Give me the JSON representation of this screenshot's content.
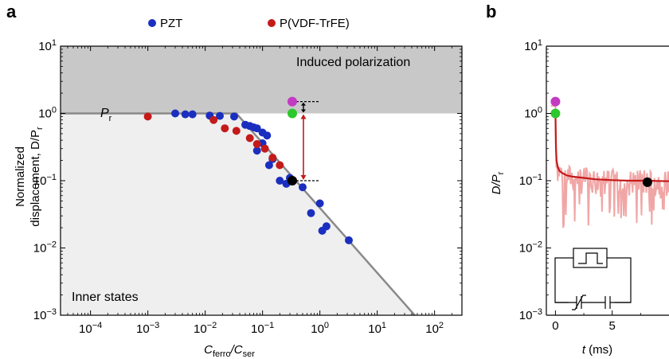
{
  "panels": {
    "a": {
      "letter": "a"
    },
    "b": {
      "letter": "b"
    }
  },
  "legend": {
    "pzt": {
      "label": "PZT",
      "color": "#1a2fbf"
    },
    "pvdf": {
      "label": "P(VDF-TrFE)",
      "color": "#c41a1a"
    }
  },
  "colors": {
    "induced_region": "#c8c8c8",
    "inner_region": "#efefef",
    "boundary_line": "#8a8a8a",
    "magenta_marker": "#c23bc2",
    "green_marker": "#2ec72e",
    "black_marker": "#000000",
    "red_arrow": "#c41a1a",
    "trace_light": "#f1a6a6",
    "trace_fit": "#c41a1a"
  },
  "chart_data": [
    {
      "type": "scatter",
      "panel": "a",
      "xlabel_main": "C",
      "xlabel_sub1": "ferro",
      "xlabel_slash": "/C",
      "xlabel_sub2": "ser",
      "ylabel_line1": "Normalized",
      "ylabel_line2": "displacement, D/P",
      "ylabel_sub": "r",
      "x_scale": "log",
      "y_scale": "log",
      "xlim": [
        3e-05,
        300
      ],
      "ylim": [
        0.001,
        10
      ],
      "x_ticks": [
        {
          "base": "10",
          "exp": "−4",
          "value": 0.0001
        },
        {
          "base": "10",
          "exp": "−3",
          "value": 0.001
        },
        {
          "base": "10",
          "exp": "−2",
          "value": 0.01
        },
        {
          "base": "10",
          "exp": "−1",
          "value": 0.1
        },
        {
          "base": "10",
          "exp": "0",
          "value": 1
        },
        {
          "base": "10",
          "exp": "1",
          "value": 10
        },
        {
          "base": "10",
          "exp": "2",
          "value": 100
        }
      ],
      "y_ticks": [
        {
          "base": "10",
          "exp": "1",
          "value": 10
        },
        {
          "base": "10",
          "exp": "0",
          "value": 1
        },
        {
          "base": "10",
          "exp": "−1",
          "value": 0.1
        },
        {
          "base": "10",
          "exp": "−2",
          "value": 0.01
        },
        {
          "base": "10",
          "exp": "−3",
          "value": 0.001
        }
      ],
      "annotations": {
        "induced": "Induced polarization",
        "inner": "Inner states",
        "pr_main": "P",
        "pr_sub": "r"
      },
      "boundary_curve": {
        "x": [
          3e-05,
          0.035,
          45
        ],
        "y": [
          1,
          1,
          0.001
        ]
      },
      "series": [
        {
          "name": "PZT",
          "x": [
            0.003,
            0.0045,
            0.006,
            0.012,
            0.018,
            0.032,
            0.05,
            0.06,
            0.07,
            0.08,
            0.1,
            0.12,
            0.1,
            0.08,
            0.15,
            0.13,
            0.2,
            0.26,
            0.3,
            0.5,
            0.7,
            1.0,
            1.1,
            1.3,
            3.2
          ],
          "y": [
            1.0,
            0.97,
            0.97,
            0.93,
            0.92,
            0.9,
            0.68,
            0.65,
            0.62,
            0.6,
            0.52,
            0.47,
            0.36,
            0.28,
            0.21,
            0.17,
            0.1,
            0.09,
            0.11,
            0.08,
            0.033,
            0.046,
            0.018,
            0.021,
            0.013
          ]
        },
        {
          "name": "P(VDF-TrFE)",
          "x": [
            0.001,
            0.014,
            0.022,
            0.035,
            0.06,
            0.08,
            0.11,
            0.15,
            0.2
          ],
          "y": [
            0.9,
            0.8,
            0.6,
            0.55,
            0.43,
            0.35,
            0.3,
            0.22,
            0.17
          ]
        }
      ],
      "highlights": {
        "x": 0.33,
        "magenta_y": 1.5,
        "green_y": 1.0,
        "black_y": 0.1
      }
    },
    {
      "type": "line",
      "panel": "b",
      "xlabel_main": "t",
      "xlabel_unit": " (ms)",
      "ylabel_main": "D/P",
      "ylabel_sub": "r",
      "y_scale": "log",
      "xlim": [
        -0.8,
        10
      ],
      "ylim": [
        0.001,
        10
      ],
      "x_ticks": [
        {
          "label": "0",
          "value": 0
        },
        {
          "label": "5",
          "value": 5
        }
      ],
      "y_ticks": [
        {
          "base": "10",
          "exp": "1",
          "value": 10
        },
        {
          "base": "10",
          "exp": "0",
          "value": 1
        },
        {
          "base": "10",
          "exp": "−1",
          "value": 0.1
        },
        {
          "base": "10",
          "exp": "−2",
          "value": 0.01
        },
        {
          "base": "10",
          "exp": "−3",
          "value": 0.001
        }
      ],
      "fit_curve": {
        "t": [
          0.02,
          0.05,
          0.1,
          0.2,
          0.35,
          0.6,
          1.0,
          1.5,
          2.5,
          3.5,
          5,
          6.5,
          8,
          10
        ],
        "y": [
          0.6,
          0.3,
          0.2,
          0.16,
          0.14,
          0.13,
          0.12,
          0.115,
          0.11,
          0.105,
          0.102,
          0.1,
          0.1,
          0.098
        ]
      },
      "highlights": {
        "magenta": {
          "t": 0,
          "y": 1.5
        },
        "green": {
          "t": 0,
          "y": 1.0
        },
        "black": {
          "t": 8.1,
          "y": 0.095
        }
      }
    }
  ]
}
